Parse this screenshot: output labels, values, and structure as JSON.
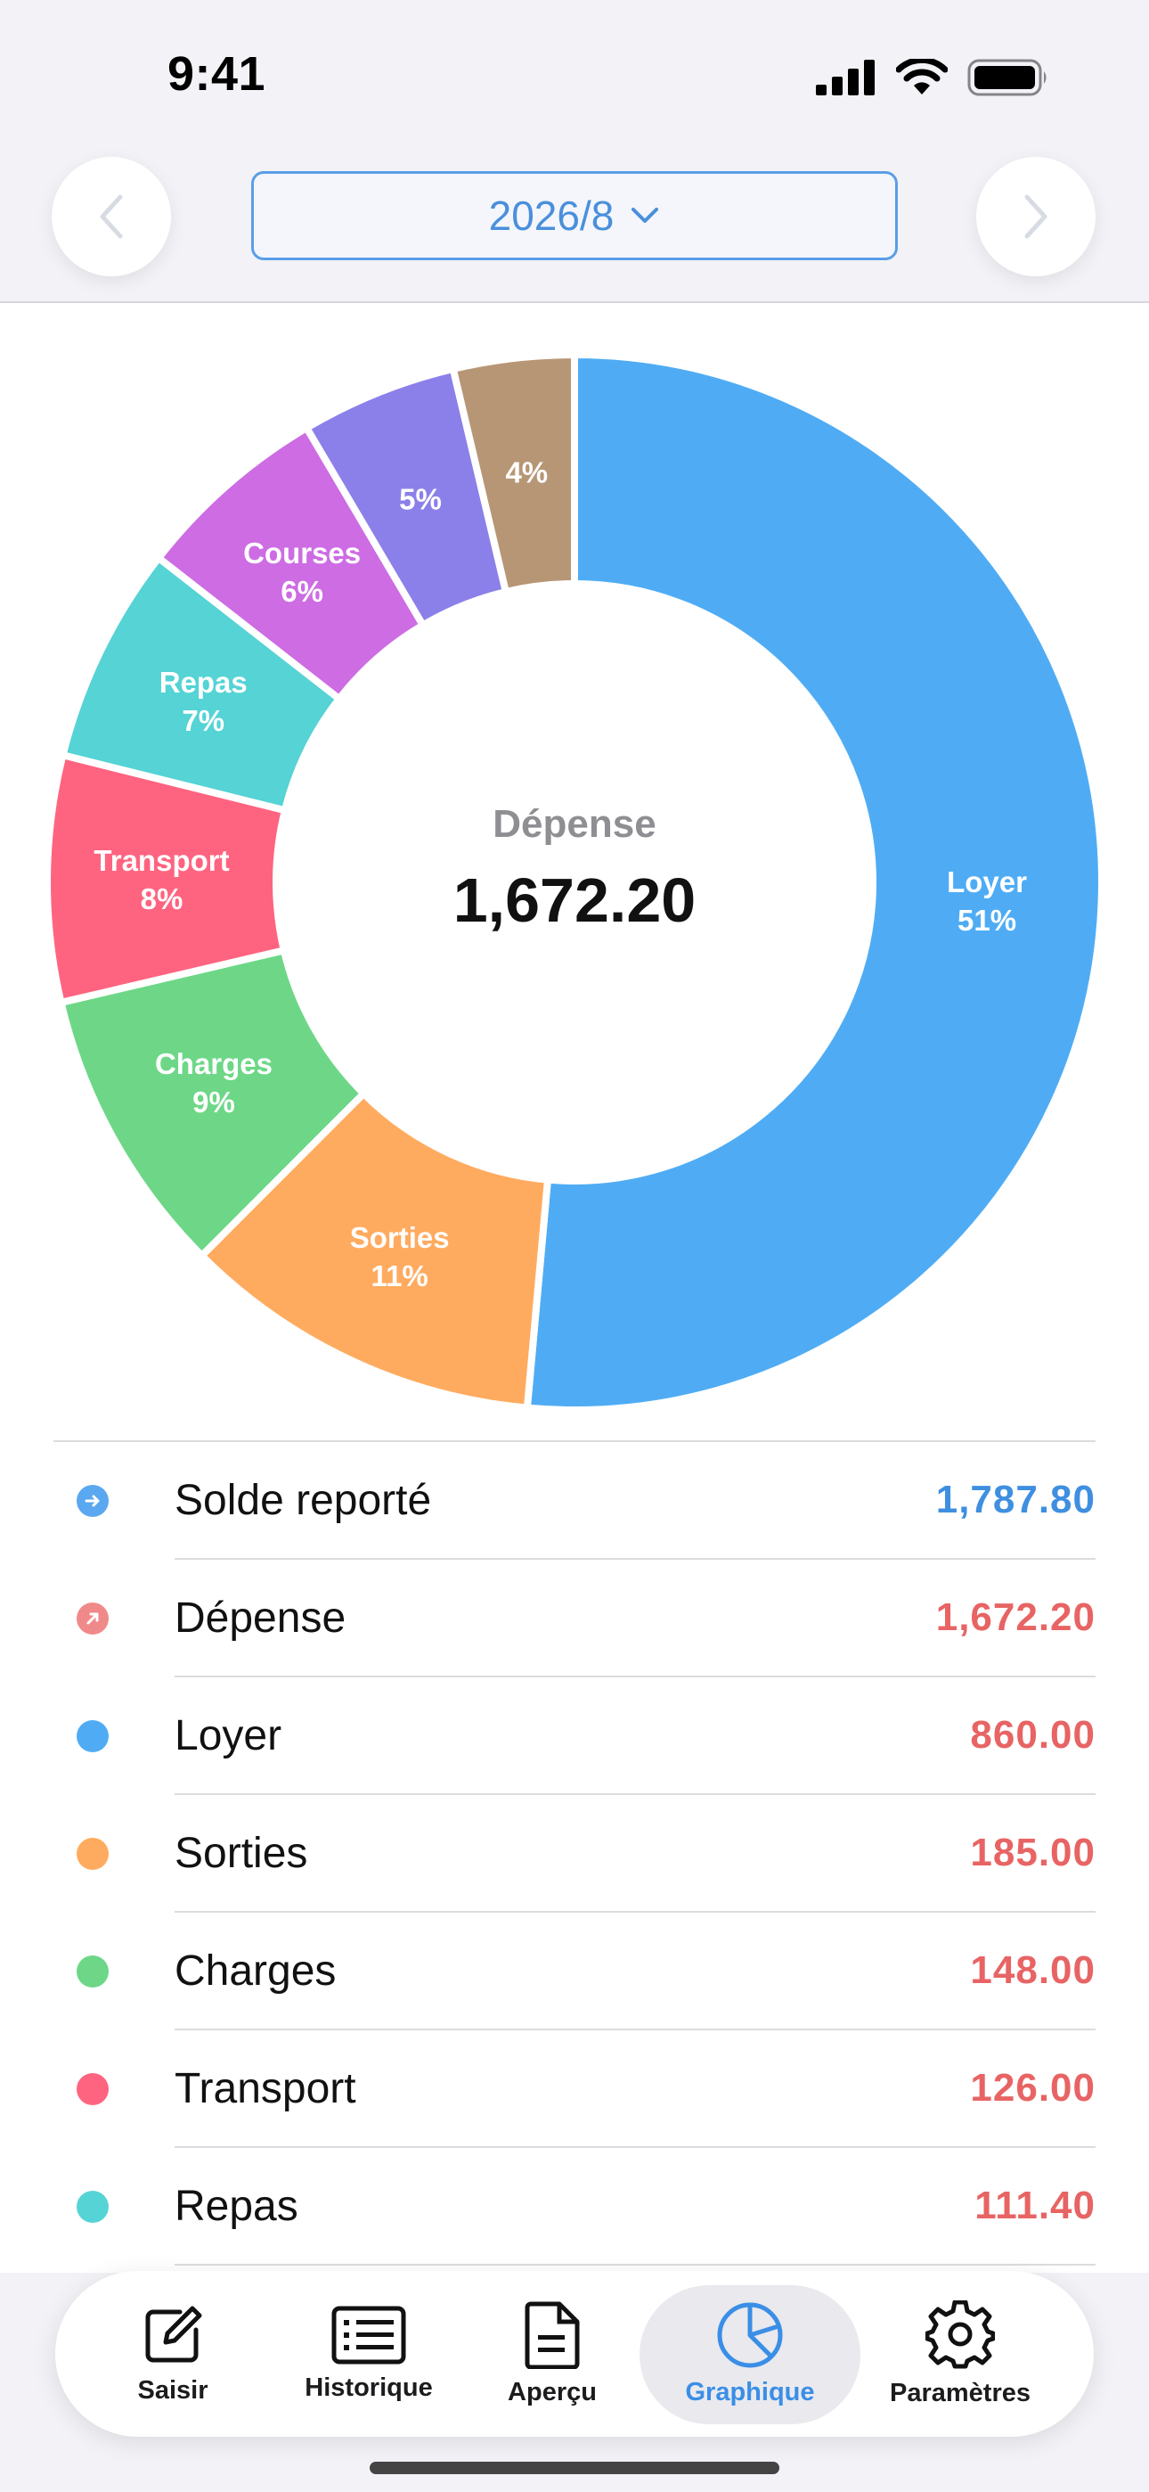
{
  "status_bar": {
    "time": "9:41"
  },
  "header": {
    "month_label": "2026/8"
  },
  "chart_data": {
    "type": "pie",
    "title": "Dépense",
    "total_label": "1,672.20",
    "slices": [
      {
        "name": "Loyer",
        "pct_label": "51%",
        "value": 860.0,
        "color": "#4facf4"
      },
      {
        "name": "Sorties",
        "pct_label": "11%",
        "value": 185.0,
        "color": "#ffab5f"
      },
      {
        "name": "Charges",
        "pct_label": "9%",
        "value": 148.0,
        "color": "#6dd787"
      },
      {
        "name": "Transport",
        "pct_label": "8%",
        "value": 126.0,
        "color": "#fe6480"
      },
      {
        "name": "Repas",
        "pct_label": "7%",
        "value": 111.4,
        "color": "#55d3d5"
      },
      {
        "name": "Courses",
        "pct_label": "6%",
        "value": 100.0,
        "color": "#cd6ce3"
      },
      {
        "name": "",
        "pct_label": "5%",
        "value": 80.0,
        "color": "#8b80e9"
      },
      {
        "name": "",
        "pct_label": "4%",
        "value": 61.8,
        "color": "#b79676"
      }
    ]
  },
  "summary": [
    {
      "name": "Solde reporté",
      "amount": "1,787.80",
      "dot_color": "#5aa8ef",
      "amount_color": "#3f8fe0",
      "icon": "arrow-right-icon"
    },
    {
      "name": "Dépense",
      "amount": "1,672.20",
      "dot_color": "#f08a8a",
      "amount_color": "#e86464",
      "icon": "arrow-up-right-icon"
    },
    {
      "name": "Loyer",
      "amount": "860.00",
      "dot_color": "#4facf4",
      "amount_color": "#e86464"
    },
    {
      "name": "Sorties",
      "amount": "185.00",
      "dot_color": "#ffab5f",
      "amount_color": "#e86464"
    },
    {
      "name": "Charges",
      "amount": "148.00",
      "dot_color": "#6dd787",
      "amount_color": "#e86464"
    },
    {
      "name": "Transport",
      "amount": "126.00",
      "dot_color": "#fe6480",
      "amount_color": "#e86464"
    },
    {
      "name": "Repas",
      "amount": "111.40",
      "dot_color": "#55d3d5",
      "amount_color": "#e86464"
    }
  ],
  "tabs": [
    {
      "label": "Saisir",
      "icon": "edit-icon"
    },
    {
      "label": "Historique",
      "icon": "list-icon"
    },
    {
      "label": "Aperçu",
      "icon": "document-icon"
    },
    {
      "label": "Graphique",
      "icon": "pie-chart-icon",
      "active": true
    },
    {
      "label": "Paramètres",
      "icon": "gear-icon"
    }
  ]
}
